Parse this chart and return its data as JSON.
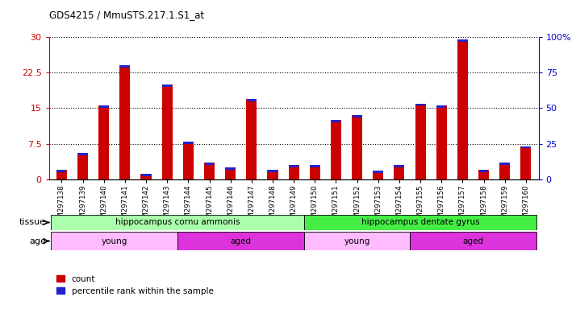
{
  "title": "GDS4215 / MmuSTS.217.1.S1_at",
  "samples": [
    "GSM297138",
    "GSM297139",
    "GSM297140",
    "GSM297141",
    "GSM297142",
    "GSM297143",
    "GSM297144",
    "GSM297145",
    "GSM297146",
    "GSM297147",
    "GSM297148",
    "GSM297149",
    "GSM297150",
    "GSM297151",
    "GSM297152",
    "GSM297153",
    "GSM297154",
    "GSM297155",
    "GSM297156",
    "GSM297157",
    "GSM297158",
    "GSM297159",
    "GSM297160"
  ],
  "count_values": [
    2.0,
    5.5,
    15.5,
    24.0,
    1.2,
    20.0,
    8.0,
    3.5,
    2.5,
    17.0,
    2.0,
    3.0,
    3.0,
    12.5,
    13.5,
    1.8,
    3.0,
    16.0,
    15.5,
    29.5,
    2.0,
    3.5,
    7.0
  ],
  "percentile_values": [
    0.8,
    1.2,
    2.0,
    5.5,
    0.6,
    5.0,
    2.0,
    1.0,
    1.2,
    4.5,
    0.8,
    1.0,
    0.8,
    2.0,
    2.5,
    0.8,
    1.0,
    4.5,
    2.0,
    5.5,
    0.8,
    1.2,
    0.8
  ],
  "count_color": "#cc0000",
  "percentile_color": "#2222cc",
  "bar_width": 0.5,
  "ylim_left": [
    0,
    30
  ],
  "ylim_right": [
    0,
    100
  ],
  "yticks_left": [
    0,
    7.5,
    15,
    22.5,
    30
  ],
  "ytick_labels_left": [
    "0",
    "7.5",
    "15",
    "22.5",
    "30"
  ],
  "yticks_right": [
    0,
    25,
    50,
    75,
    100
  ],
  "ytick_labels_right": [
    "0",
    "25",
    "50",
    "75",
    "100%"
  ],
  "tissue_groups": [
    {
      "label": "hippocampus cornu ammonis",
      "start": 0,
      "end": 12,
      "color": "#aaffaa"
    },
    {
      "label": "hippocampus dentate gyrus",
      "start": 12,
      "end": 23,
      "color": "#44ee44"
    }
  ],
  "age_groups": [
    {
      "label": "young",
      "start": 0,
      "end": 6,
      "color": "#ffbbff"
    },
    {
      "label": "aged",
      "start": 6,
      "end": 12,
      "color": "#dd33dd"
    },
    {
      "label": "young",
      "start": 12,
      "end": 17,
      "color": "#ffbbff"
    },
    {
      "label": "aged",
      "start": 17,
      "end": 23,
      "color": "#dd33dd"
    }
  ],
  "tissue_label": "tissue",
  "age_label": "age",
  "legend_count": "count",
  "legend_percentile": "percentile rank within the sample",
  "left_axis_color": "#cc0000",
  "right_axis_color": "#0000cc",
  "bg_color": "#ffffff"
}
